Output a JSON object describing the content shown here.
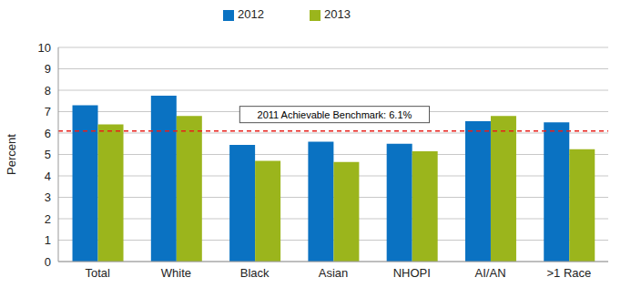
{
  "chart_data": {
    "type": "bar",
    "categories": [
      "Total",
      "White",
      "Black",
      "Asian",
      "NHOPI",
      "AI/AN",
      ">1 Race"
    ],
    "series": [
      {
        "name": "2012",
        "color": "#0a72c2",
        "values": [
          7.3,
          7.75,
          5.45,
          5.6,
          5.5,
          6.55,
          6.5
        ]
      },
      {
        "name": "2013",
        "color": "#9bb51c",
        "values": [
          6.4,
          6.8,
          4.7,
          4.65,
          5.15,
          6.8,
          5.25
        ]
      }
    ],
    "y_label": "Percent",
    "ylim": [
      0,
      10
    ],
    "yticks": [
      0,
      1,
      2,
      3,
      4,
      5,
      6,
      7,
      8,
      9,
      10
    ],
    "grid": true,
    "legend": "top",
    "annotations": [
      {
        "text": "2011 Achievable Benchmark: 6.1%",
        "y": 6.1,
        "color": "#e8201a",
        "line_style": "dashed"
      }
    ]
  }
}
